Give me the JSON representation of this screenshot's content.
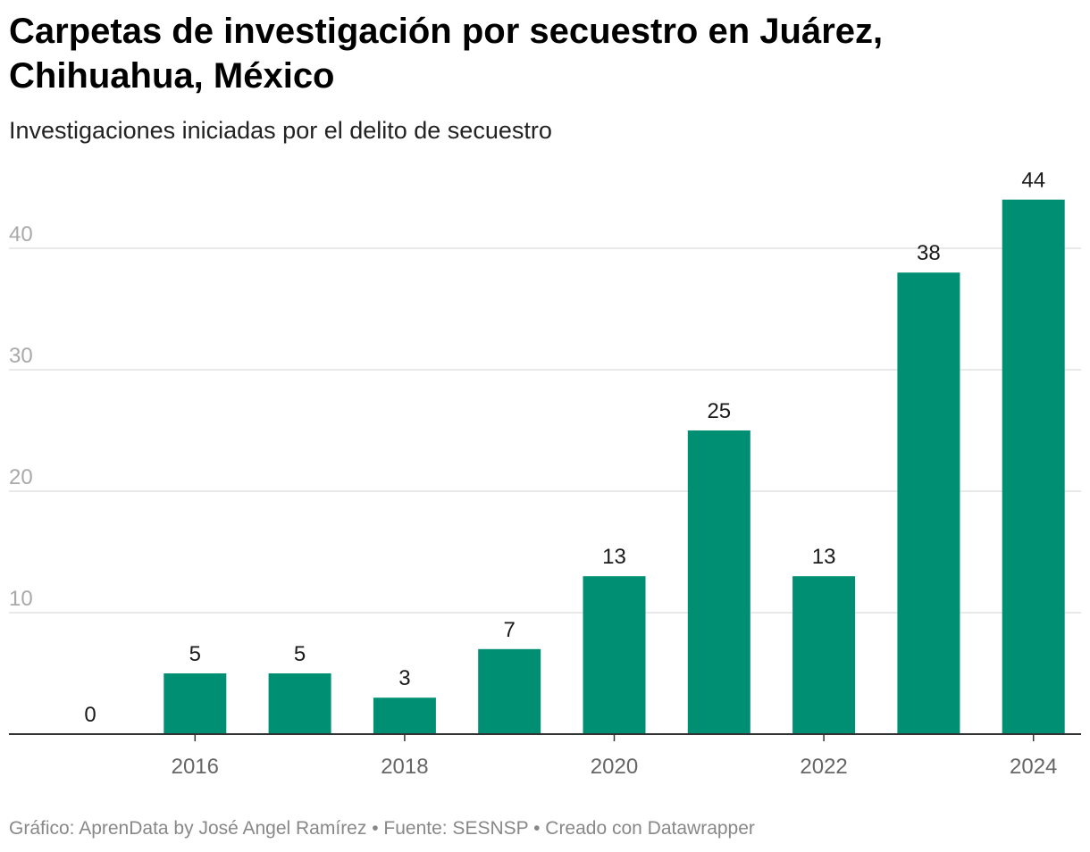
{
  "header": {
    "title": "Carpetas de investigación por secuestro en Juárez, Chihuahua, México",
    "subtitle": "Investigaciones iniciadas por el delito de secuestro"
  },
  "footer": {
    "text": "Gráfico: AprenData by José Angel Ramírez • Fuente: SESNSP • Creado con Datawrapper"
  },
  "chart_data": {
    "type": "bar",
    "title": "Carpetas de investigación por secuestro en Juárez, Chihuahua, México",
    "subtitle": "Investigaciones iniciadas por el delito de secuestro",
    "categories": [
      "2015",
      "2016",
      "2017",
      "2018",
      "2019",
      "2020",
      "2021",
      "2022",
      "2023",
      "2024"
    ],
    "values": [
      0,
      5,
      5,
      3,
      7,
      13,
      25,
      13,
      38,
      44
    ],
    "x_tick_labels": [
      "2016",
      "2018",
      "2020",
      "2022",
      "2024"
    ],
    "y_ticks": [
      10,
      20,
      30,
      40
    ],
    "ylim": [
      0,
      44
    ],
    "xlabel": "",
    "ylabel": "",
    "grid": true,
    "legend": "none",
    "data_labels": true,
    "bar_color": "#008f73"
  }
}
